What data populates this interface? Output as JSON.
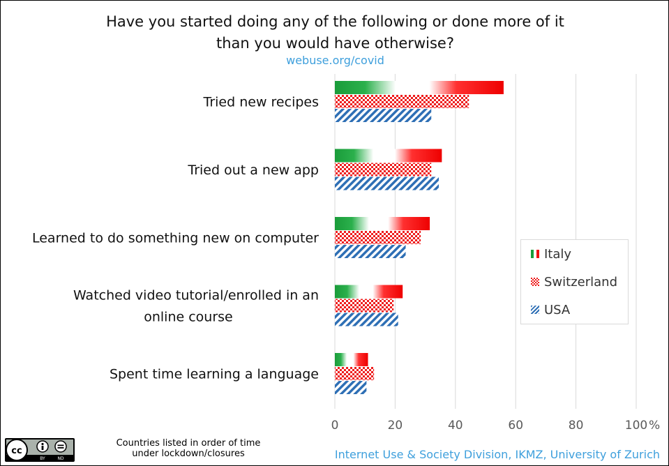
{
  "header": {
    "title_line1": "Have you started doing any of the following or done more of it",
    "title_line2": "than you would have otherwise?",
    "subtitle": "webuse.org/covid"
  },
  "footer": {
    "note_line1": "Countries listed in order of time",
    "note_line2": "under lockdown/closures",
    "credit": "Internet Use & Society Division, IKMZ, University of Zurich",
    "license_icon": "cc-by-nd-icon",
    "license_text": [
      "BY",
      "ND"
    ]
  },
  "colors": {
    "italy_green": "#1a9c3a",
    "italy_red": "#ee1111",
    "switzerland_red": "#ee1c1c",
    "usa_blue": "#2e6fb5",
    "accent_blue": "#3e9fdc",
    "gridline": "#d9d9d9"
  },
  "chart_data": {
    "type": "bar",
    "orientation": "horizontal",
    "title": "Have you started doing any of the following or done more of it than you would have otherwise?",
    "categories": [
      [
        "Tried new recipes"
      ],
      [
        "Tried out a new app"
      ],
      [
        "Learned to do something new on computer"
      ],
      [
        "Watched video tutorial/enrolled in an",
        "online course"
      ],
      [
        "Spent time learning a language"
      ]
    ],
    "series": [
      {
        "name": "Italy",
        "pattern": "italy-flag-gradient",
        "values": [
          56,
          35.5,
          31.5,
          22.5,
          11
        ]
      },
      {
        "name": "Switzerland",
        "pattern": "red-checkerboard",
        "values": [
          44.5,
          32,
          28.5,
          19.5,
          13
        ]
      },
      {
        "name": "USA",
        "pattern": "blue-diagonal-stripes",
        "values": [
          32,
          34.5,
          23.5,
          21,
          10.5
        ]
      }
    ],
    "xlim": [
      0,
      100
    ],
    "xticks": [
      "0",
      "20",
      "40",
      "60",
      "80",
      "100"
    ],
    "x_unit": "%",
    "grid": true,
    "legend_placement": "right"
  }
}
